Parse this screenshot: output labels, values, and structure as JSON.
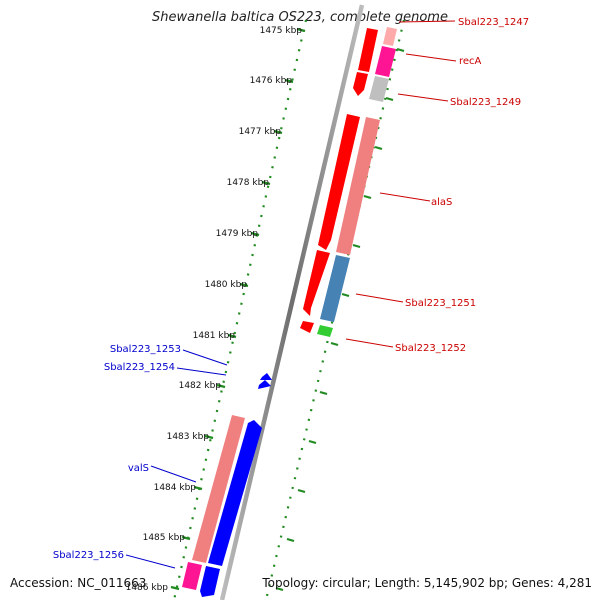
{
  "title": "Shewanella baltica OS223, complete genome",
  "accession": "Accession: NC_011663",
  "summary": "Topology: circular; Length: 5,145,902 bp; Genes: 4,281",
  "ruler": {
    "tick_labels": [
      "1475 kbp",
      "1476 kbp",
      "1477 kbp",
      "1478 kbp",
      "1479 kbp",
      "1480 kbp",
      "1481 kbp",
      "1482 kbp",
      "1483 kbp",
      "1484 kbp",
      "1485 kbp",
      "1486 kbp"
    ]
  },
  "forward_labels": [
    "Sbal223_1247",
    "recA",
    "Sbal223_1249",
    "alaS",
    "Sbal223_1251",
    "Sbal223_1252"
  ],
  "reverse_labels": [
    "Sbal223_1253",
    "Sbal223_1254",
    "valS",
    "Sbal223_1256"
  ],
  "colors": {
    "forward_label": "#cc0000",
    "reverse_label": "#0000cc",
    "cds_red": "#ff0000",
    "cds_blue": "#0000ff",
    "ruler_tick": "#228b22",
    "backbone": "#888888"
  }
}
